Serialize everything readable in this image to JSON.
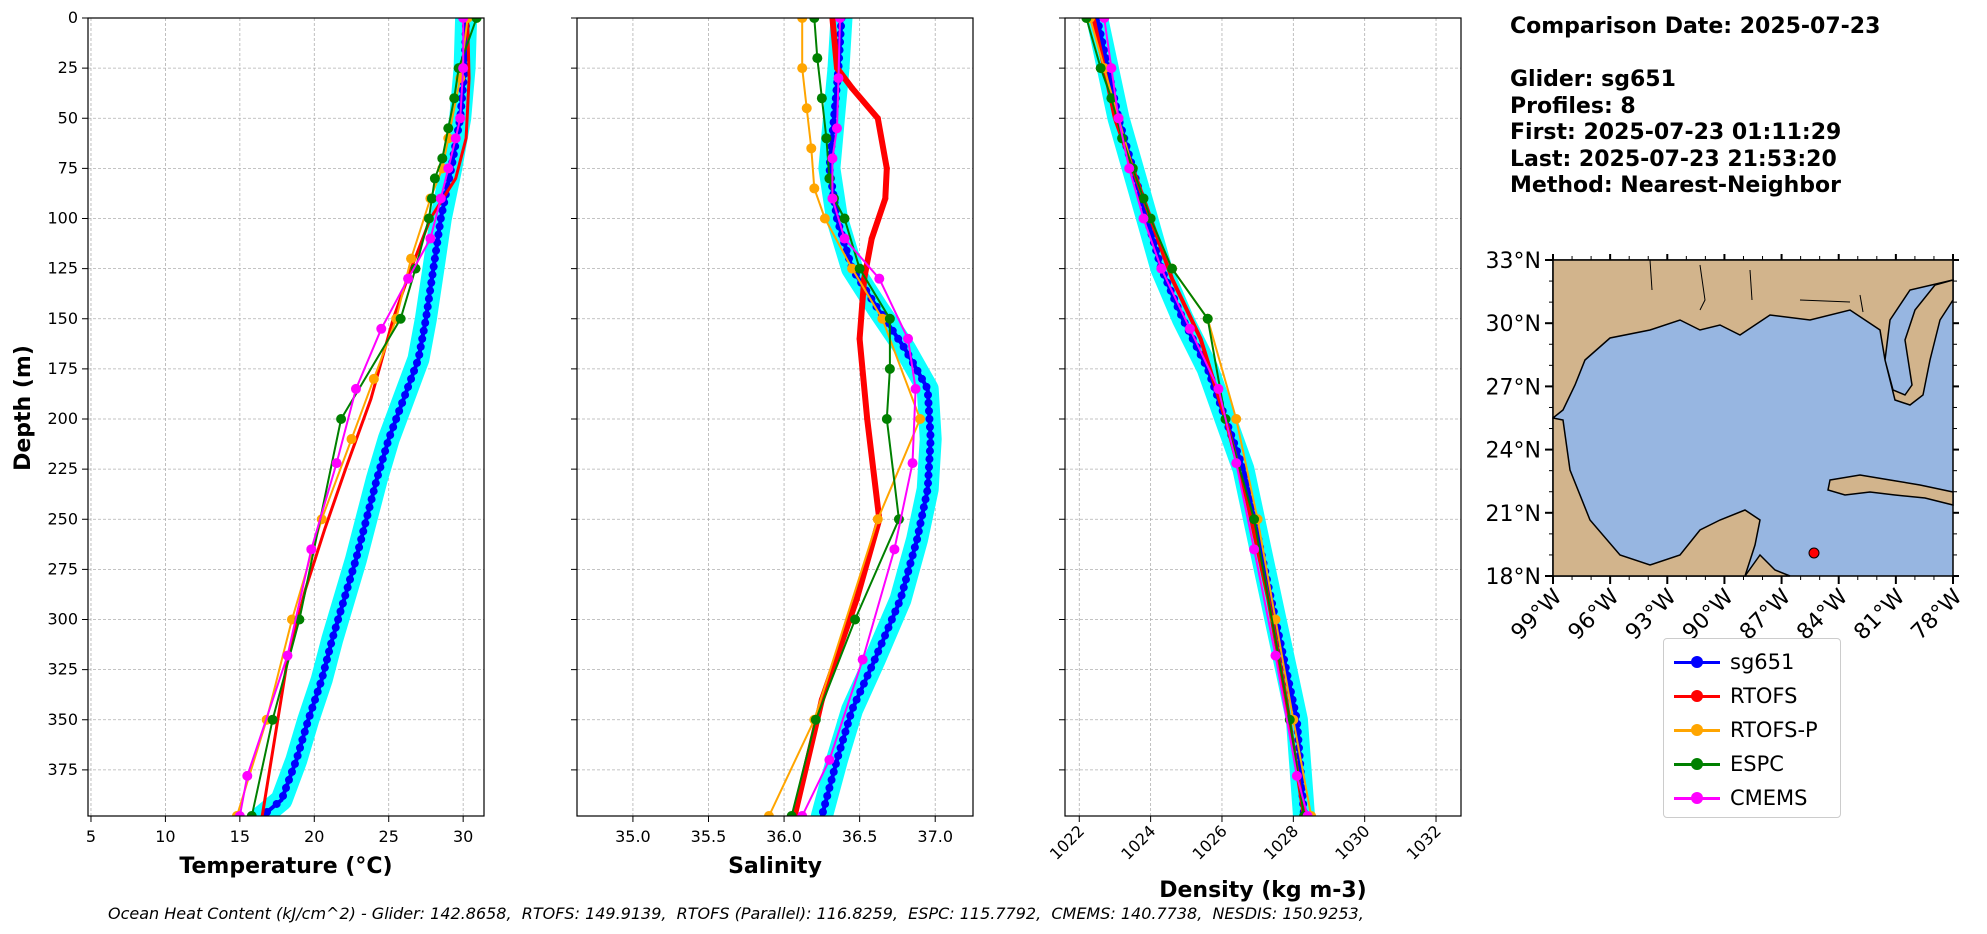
{
  "info": {
    "comparison": "Comparison Date: 2025-07-23",
    "glider": "Glider: sg651",
    "profiles": "Profiles: 8",
    "first": "First: 2025-07-23 01:11:29",
    "last": "Last: 2025-07-23 21:53:20",
    "method": "Method: Nearest-Neighbor"
  },
  "footer": "Ocean Heat Content (kJ/cm^2) - Glider: 142.8658,  RTOFS: 149.9139,  RTOFS (Parallel): 116.8259,  ESPC: 115.7792,  CMEMS: 140.7738,  NESDIS: 150.9253,",
  "legend": [
    {
      "name": "sg651",
      "color": "#0000ff"
    },
    {
      "name": "RTOFS",
      "color": "#ff0000"
    },
    {
      "name": "RTOFS-P",
      "color": "#ffa500"
    },
    {
      "name": "ESPC",
      "color": "#008000"
    },
    {
      "name": "CMEMS",
      "color": "#ff00ff"
    }
  ],
  "chart_data": [
    {
      "type": "line",
      "xlabel": "Temperature (°C)",
      "ylabel": "Depth (m)",
      "xlim": [
        4.8,
        31.4
      ],
      "ylim": [
        398,
        0
      ],
      "xticks": [
        5,
        10,
        15,
        20,
        25,
        30
      ],
      "yticks": [
        0,
        25,
        50,
        75,
        100,
        125,
        150,
        175,
        200,
        225,
        250,
        275,
        300,
        325,
        350,
        375
      ],
      "grid": true,
      "series": [
        {
          "name": "sg651",
          "color": "#0000ff",
          "width": 4,
          "marker": 4,
          "x": [
            30.2,
            30.1,
            29.8,
            29.2,
            28.5,
            28.0,
            27.5,
            27.0,
            26.0,
            25.0,
            24.2,
            23.5,
            22.8,
            22.0,
            21.2,
            20.5,
            19.6,
            18.8,
            17.8,
            16.5
          ],
          "y": [
            0,
            25,
            50,
            75,
            100,
            125,
            150,
            170,
            190,
            210,
            230,
            250,
            270,
            290,
            310,
            330,
            350,
            370,
            390,
            398
          ]
        },
        {
          "name": "RTOFS",
          "color": "#ff0000",
          "width": 3,
          "marker": 0,
          "x": [
            30.3,
            30.4,
            30.2,
            29.5,
            27.8,
            26.5,
            25.3,
            23.8,
            22.1,
            20.7,
            19.4,
            18.2,
            16.5
          ],
          "y": [
            0,
            30,
            60,
            80,
            100,
            125,
            150,
            190,
            225,
            255,
            285,
            320,
            398
          ]
        },
        {
          "name": "RTOFS-P",
          "color": "#ffa500",
          "width": 2,
          "marker": 5,
          "x": [
            30.3,
            29.8,
            29.0,
            28.6,
            27.8,
            26.5,
            25.5,
            24.0,
            22.5,
            20.5,
            18.5,
            16.8,
            14.8
          ],
          "y": [
            0,
            30,
            60,
            75,
            90,
            120,
            150,
            180,
            210,
            250,
            300,
            350,
            398
          ]
        },
        {
          "name": "ESPC",
          "color": "#008000",
          "width": 2,
          "marker": 5,
          "x": [
            30.9,
            29.7,
            29.4,
            29.0,
            28.6,
            28.1,
            27.9,
            27.7,
            26.8,
            25.8,
            21.8,
            19.0,
            17.2,
            15.8
          ],
          "y": [
            0,
            25,
            40,
            55,
            70,
            80,
            90,
            100,
            125,
            150,
            200,
            300,
            350,
            398
          ]
        },
        {
          "name": "CMEMS",
          "color": "#ff00ff",
          "width": 2,
          "marker": 5,
          "x": [
            30.0,
            30.0,
            29.8,
            29.5,
            29.0,
            28.5,
            27.8,
            26.3,
            24.5,
            22.8,
            21.5,
            19.8,
            18.2,
            15.5,
            15.0
          ],
          "y": [
            0,
            25,
            50,
            60,
            75,
            90,
            110,
            130,
            155,
            185,
            222,
            265,
            318,
            378,
            398
          ]
        }
      ]
    },
    {
      "type": "line",
      "xlabel": "Salinity",
      "ylabel": "",
      "xlim": [
        34.63,
        37.25
      ],
      "ylim": [
        398,
        0
      ],
      "xticks": [
        35.0,
        35.5,
        36.0,
        36.5,
        37.0
      ],
      "yticks": [
        0,
        25,
        50,
        75,
        100,
        125,
        150,
        175,
        200,
        225,
        250,
        275,
        300,
        325,
        350,
        375
      ],
      "grid": true,
      "series": [
        {
          "name": "sg651",
          "color": "#0000ff",
          "width": 4,
          "marker": 4,
          "x": [
            36.38,
            36.36,
            36.33,
            36.3,
            36.35,
            36.45,
            36.62,
            36.8,
            36.95,
            36.97,
            36.95,
            36.88,
            36.77,
            36.6,
            36.45,
            36.35,
            36.25
          ],
          "y": [
            0,
            25,
            50,
            75,
            100,
            125,
            145,
            165,
            185,
            210,
            235,
            260,
            290,
            320,
            345,
            370,
            398
          ]
        },
        {
          "name": "RTOFS",
          "color": "#ff0000",
          "width": 6,
          "marker": 3,
          "x": [
            36.32,
            36.35,
            36.45,
            36.62,
            36.68,
            36.67,
            36.58,
            36.53,
            36.5,
            36.55,
            36.63,
            36.48,
            36.25,
            36.07
          ],
          "y": [
            0,
            25,
            35,
            50,
            75,
            90,
            110,
            130,
            160,
            200,
            250,
            290,
            340,
            398
          ]
        },
        {
          "name": "RTOFS-P",
          "color": "#ffa500",
          "width": 2,
          "marker": 5,
          "x": [
            36.12,
            36.12,
            36.15,
            36.18,
            36.2,
            36.27,
            36.45,
            36.65,
            36.9,
            36.62,
            36.2,
            35.9
          ],
          "y": [
            0,
            25,
            45,
            65,
            85,
            100,
            125,
            150,
            200,
            250,
            350,
            398
          ]
        },
        {
          "name": "ESPC",
          "color": "#008000",
          "width": 2,
          "marker": 5,
          "x": [
            36.2,
            36.22,
            36.25,
            36.28,
            36.3,
            36.33,
            36.4,
            36.5,
            36.7,
            36.7,
            36.68,
            36.76,
            36.47,
            36.21,
            36.05
          ],
          "y": [
            0,
            20,
            40,
            60,
            80,
            90,
            100,
            125,
            150,
            175,
            200,
            250,
            300,
            350,
            398
          ]
        },
        {
          "name": "CMEMS",
          "color": "#ff00ff",
          "width": 2,
          "marker": 5,
          "x": [
            36.37,
            36.36,
            36.35,
            36.32,
            36.32,
            36.4,
            36.63,
            36.82,
            36.87,
            36.85,
            36.73,
            36.52,
            36.3,
            36.12
          ],
          "y": [
            0,
            30,
            55,
            70,
            90,
            110,
            130,
            160,
            185,
            222,
            265,
            320,
            370,
            398
          ]
        }
      ]
    },
    {
      "type": "line",
      "xlabel": "Density (kg m-3)",
      "ylabel": "",
      "xlim": [
        1021.6,
        1032.7
      ],
      "ylim": [
        398,
        0
      ],
      "xticks": [
        1022,
        1024,
        1026,
        1028,
        1030,
        1032
      ],
      "yticks": [
        0,
        25,
        50,
        75,
        100,
        125,
        150,
        175,
        200,
        225,
        250,
        275,
        300,
        325,
        350,
        375
      ],
      "grid": true,
      "series": [
        {
          "name": "sg651",
          "color": "#0000ff",
          "width": 4,
          "marker": 4,
          "x": [
            1022.5,
            1022.8,
            1023.1,
            1023.5,
            1023.9,
            1024.3,
            1024.9,
            1025.6,
            1026.1,
            1026.6,
            1026.9,
            1027.2,
            1027.5,
            1027.8,
            1028.1,
            1028.3
          ],
          "y": [
            0,
            25,
            50,
            75,
            100,
            125,
            150,
            175,
            200,
            225,
            250,
            275,
            300,
            325,
            350,
            398
          ]
        },
        {
          "name": "RTOFS",
          "color": "#ff0000",
          "width": 4,
          "marker": 0,
          "x": [
            1022.4,
            1022.7,
            1023.0,
            1023.5,
            1024.0,
            1024.6,
            1025.4,
            1026.1,
            1026.7,
            1027.3,
            1027.8,
            1028.3
          ],
          "y": [
            0,
            25,
            50,
            75,
            100,
            130,
            160,
            200,
            240,
            290,
            340,
            398
          ]
        },
        {
          "name": "RTOFS-P",
          "color": "#ffa500",
          "width": 2,
          "marker": 5,
          "x": [
            1022.3,
            1022.7,
            1023.1,
            1023.5,
            1024.0,
            1024.6,
            1025.6,
            1026.4,
            1027.0,
            1027.5,
            1028.0,
            1028.5
          ],
          "y": [
            0,
            25,
            50,
            75,
            100,
            125,
            150,
            200,
            250,
            300,
            350,
            398
          ]
        },
        {
          "name": "ESPC",
          "color": "#008000",
          "width": 2,
          "marker": 5,
          "x": [
            1022.2,
            1022.6,
            1022.9,
            1023.2,
            1023.5,
            1023.8,
            1024.0,
            1024.6,
            1025.6,
            1026.1,
            1026.9,
            1027.9,
            1028.3
          ],
          "y": [
            0,
            25,
            40,
            60,
            75,
            90,
            100,
            125,
            150,
            200,
            250,
            350,
            398
          ]
        },
        {
          "name": "CMEMS",
          "color": "#ff00ff",
          "width": 2,
          "marker": 5,
          "x": [
            1022.7,
            1022.9,
            1023.1,
            1023.4,
            1023.8,
            1024.3,
            1025.1,
            1025.9,
            1026.4,
            1026.9,
            1027.5,
            1028.1,
            1028.4
          ],
          "y": [
            0,
            25,
            50,
            75,
            100,
            125,
            155,
            185,
            222,
            265,
            318,
            378,
            398
          ]
        }
      ]
    }
  ],
  "map": {
    "lat_labels": [
      "33°N",
      "30°N",
      "27°N",
      "24°N",
      "21°N",
      "18°N"
    ],
    "lon_labels": [
      "99°W",
      "96°W",
      "93°W",
      "90°W",
      "87°W",
      "84°W",
      "81°W",
      "78°W"
    ],
    "land_color": "#d2b48c",
    "water_color": "#97b6e1",
    "marker_color": "#ff0000"
  }
}
